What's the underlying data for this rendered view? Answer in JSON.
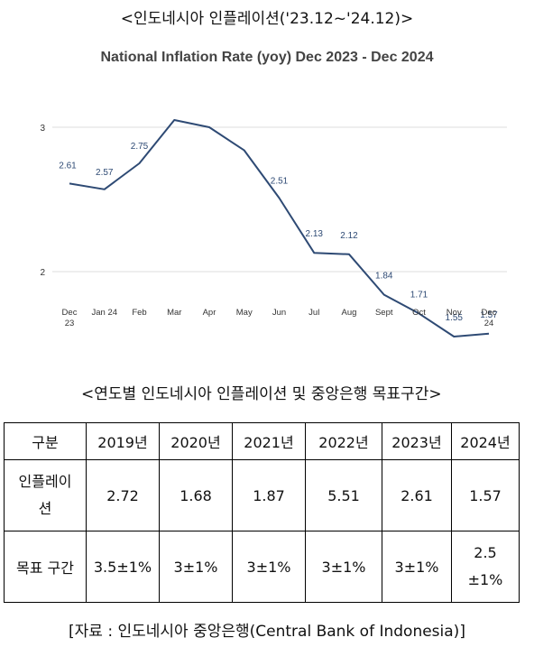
{
  "chart_caption": "<인도네시아 인플레이션('23.12~'24.12)>",
  "table_caption": "<연도별 인도네시아 인플레이션 및 중앙은행 목표구간>",
  "source_note": "[자료 : 인도네시아 중앙은행(Central Bank of Indonesia)]",
  "chart_data": {
    "type": "line",
    "title": "National Inflation Rate (yoy) Dec 2023 - Dec 2024",
    "xlabel": "",
    "ylabel": "",
    "categories": [
      "Dec 23",
      "Jan 24",
      "Feb",
      "Mar",
      "Apr",
      "May",
      "Jun",
      "Jul",
      "Aug",
      "Sept",
      "Oct",
      "Nov",
      "Dec 24"
    ],
    "category_lines": [
      [
        "Dec",
        "23"
      ],
      [
        "Jan 24"
      ],
      [
        "Feb"
      ],
      [
        "Mar"
      ],
      [
        "Apr"
      ],
      [
        "May"
      ],
      [
        "Jun"
      ],
      [
        "Jul"
      ],
      [
        "Aug"
      ],
      [
        "Sept"
      ],
      [
        "Oct"
      ],
      [
        "Nov"
      ],
      [
        "Dec",
        "24"
      ]
    ],
    "values": [
      2.61,
      2.57,
      2.75,
      3.05,
      3.0,
      2.84,
      2.51,
      2.13,
      2.12,
      1.84,
      1.71,
      1.55,
      1.57
    ],
    "data_labels": [
      "2.61",
      "2.57",
      "2.75",
      "",
      "",
      "",
      "2.51",
      "2.13",
      "2.12",
      "1.84",
      "1.71",
      "1.55",
      "1.57"
    ],
    "y_ticks": [
      "3",
      "2"
    ],
    "ylim": [
      1.55,
      3.05
    ],
    "grid": true,
    "line_color": "#2e4a74",
    "label_color": "#2e4a74"
  },
  "table": {
    "headers": [
      "구분",
      "2019년",
      "2020년",
      "2021년",
      "2022년",
      "2023년",
      "2024년"
    ],
    "rows": [
      {
        "label_lines": [
          "인플레이",
          "션"
        ],
        "values": [
          "2.72",
          "1.68",
          "1.87",
          "5.51",
          "2.61",
          "1.57"
        ]
      },
      {
        "label_lines": [
          "목표 구간"
        ],
        "values": [
          "3.5±1%",
          "3±1%",
          "3±1%",
          "3±1%",
          "3±1%"
        ],
        "last_lines": [
          "2.5",
          "±1%"
        ]
      }
    ]
  }
}
